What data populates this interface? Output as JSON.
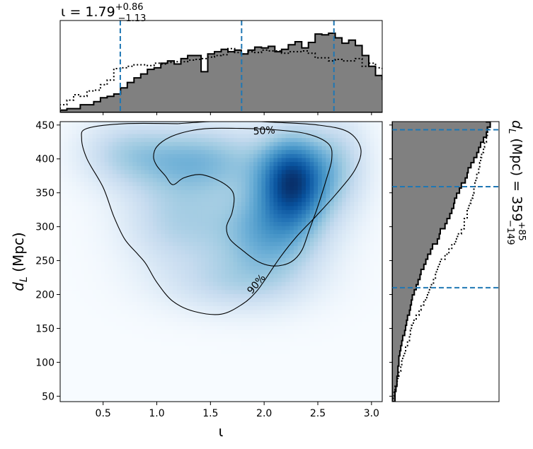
{
  "chart_data": [
    {
      "type": "heatmap",
      "panel": "main",
      "xlabel": "ι",
      "ylabel_main": "d",
      "ylabel_sub": "L",
      "ylabel_unit": " (Mpc)",
      "xlim": [
        0.1,
        3.1
      ],
      "ylim": [
        42,
        455
      ],
      "xticks": [
        0.5,
        1.0,
        1.5,
        2.0,
        2.5,
        3.0
      ],
      "xtick_labels": [
        "0.5",
        "1.0",
        "1.5",
        "2.0",
        "2.5",
        "3.0"
      ],
      "yticks": [
        50,
        100,
        150,
        200,
        250,
        300,
        350,
        400,
        450
      ],
      "ytick_labels": [
        "50",
        "100",
        "150",
        "200",
        "250",
        "300",
        "350",
        "400",
        "450"
      ],
      "colormap": "Blues",
      "density_peaks": [
        {
          "x": 2.27,
          "y": 370,
          "weight": 1.0,
          "sx": 0.22,
          "sy": 45
        },
        {
          "x": 2.05,
          "y": 290,
          "weight": 0.55,
          "sx": 0.35,
          "sy": 50
        },
        {
          "x": 1.4,
          "y": 400,
          "weight": 0.45,
          "sx": 0.45,
          "sy": 35
        },
        {
          "x": 1.2,
          "y": 310,
          "weight": 0.32,
          "sx": 0.35,
          "sy": 50
        },
        {
          "x": 0.7,
          "y": 410,
          "weight": 0.25,
          "sx": 0.3,
          "sy": 35
        },
        {
          "x": 1.7,
          "y": 215,
          "weight": 0.22,
          "sx": 0.45,
          "sy": 30
        },
        {
          "x": 2.7,
          "y": 390,
          "weight": 0.3,
          "sx": 0.2,
          "sy": 50
        }
      ],
      "contours": [
        {
          "label": "50%",
          "label_at": [
            2.0,
            441
          ],
          "label_rotation": -3,
          "points": [
            [
              1.8,
              445
            ],
            [
              2.1,
              443
            ],
            [
              2.4,
              437
            ],
            [
              2.6,
              422
            ],
            [
              2.63,
              400
            ],
            [
              2.58,
              370
            ],
            [
              2.5,
              330
            ],
            [
              2.42,
              295
            ],
            [
              2.35,
              265
            ],
            [
              2.25,
              248
            ],
            [
              2.1,
              242
            ],
            [
              1.95,
              248
            ],
            [
              1.8,
              265
            ],
            [
              1.68,
              282
            ],
            [
              1.65,
              300
            ],
            [
              1.7,
              320
            ],
            [
              1.72,
              343
            ],
            [
              1.68,
              357
            ],
            [
              1.55,
              370
            ],
            [
              1.4,
              377
            ],
            [
              1.25,
              372
            ],
            [
              1.15,
              362
            ],
            [
              1.08,
              375
            ],
            [
              1.0,
              390
            ],
            [
              0.97,
              403
            ],
            [
              1.0,
              418
            ],
            [
              1.12,
              432
            ],
            [
              1.3,
              441
            ],
            [
              1.5,
              445
            ],
            [
              1.8,
              445
            ]
          ]
        },
        {
          "label": "90%",
          "label_at": [
            1.93,
            215
          ],
          "label_rotation": -50,
          "points": [
            [
              1.2,
              452
            ],
            [
              1.5,
              455
            ],
            [
              1.8,
              456
            ],
            [
              2.1,
              454
            ],
            [
              2.5,
              450
            ],
            [
              2.78,
              440
            ],
            [
              2.9,
              415
            ],
            [
              2.85,
              385
            ],
            [
              2.68,
              350
            ],
            [
              2.48,
              315
            ],
            [
              2.3,
              285
            ],
            [
              2.15,
              255
            ],
            [
              2.0,
              220
            ],
            [
              1.92,
              203
            ],
            [
              1.8,
              186
            ],
            [
              1.6,
              171
            ],
            [
              1.35,
              175
            ],
            [
              1.15,
              190
            ],
            [
              1.0,
              218
            ],
            [
              0.9,
              245
            ],
            [
              0.82,
              260
            ],
            [
              0.7,
              282
            ],
            [
              0.6,
              315
            ],
            [
              0.5,
              358
            ],
            [
              0.35,
              400
            ],
            [
              0.3,
              430
            ],
            [
              0.35,
              445
            ],
            [
              0.7,
              452
            ],
            [
              1.2,
              452
            ]
          ]
        }
      ]
    },
    {
      "type": "histogram",
      "panel": "top",
      "title_prefix": "ι = 1.79",
      "title_sup": "+0.86",
      "title_sub": "−1.13",
      "xlim": [
        0.1,
        3.1
      ],
      "bin_start": 0.1,
      "bin_width": 0.0625,
      "max_height": 1.0,
      "series": [
        {
          "name": "solid",
          "style": "filled-step",
          "values": [
            0.03,
            0.05,
            0.05,
            0.1,
            0.1,
            0.14,
            0.19,
            0.21,
            0.24,
            0.32,
            0.39,
            0.45,
            0.5,
            0.56,
            0.58,
            0.64,
            0.67,
            0.63,
            0.7,
            0.74,
            0.74,
            0.53,
            0.76,
            0.79,
            0.82,
            0.79,
            0.81,
            0.76,
            0.81,
            0.85,
            0.84,
            0.86,
            0.79,
            0.82,
            0.88,
            0.92,
            0.84,
            0.91,
            1.02,
            1.01,
            1.03,
            0.97,
            0.9,
            0.94,
            0.87,
            0.74,
            0.6,
            0.48,
            0.43,
            0.35,
            0.27,
            0.23,
            0.16,
            0.13,
            0.16,
            0.11,
            0.08,
            0.06,
            0.03,
            0.03,
            0.02,
            0.03,
            0.06,
            0.06,
            0.08,
            0.13,
            0.17,
            0.28,
            0.33,
            0.42,
            0.44,
            0.52
          ]
        },
        {
          "name": "dotted",
          "style": "dotted-step",
          "values": [
            0.1,
            0.16,
            0.23,
            0.21,
            0.28,
            0.29,
            0.36,
            0.42,
            0.57,
            0.58,
            0.6,
            0.62,
            0.62,
            0.61,
            0.64,
            0.63,
            0.65,
            0.66,
            0.66,
            0.68,
            0.69,
            0.7,
            0.72,
            0.74,
            0.75,
            0.83,
            0.78,
            0.76,
            0.79,
            0.78,
            0.81,
            0.8,
            0.8,
            0.77,
            0.79,
            0.79,
            0.8,
            0.77,
            0.71,
            0.71,
            0.67,
            0.69,
            0.67,
            0.67,
            0.7,
            0.6,
            0.64,
            0.58,
            0.55,
            0.5,
            0.45,
            0.34,
            0.28,
            0.24,
            0.18,
            0.15,
            0.12,
            0.09,
            0.08,
            0.06,
            0.05,
            0.04,
            0.06,
            0.09,
            0.12,
            0.17,
            0.22,
            0.28,
            0.33,
            0.4,
            0.45,
            0.5
          ]
        }
      ],
      "quantile_lines": [
        0.66,
        1.79,
        2.65
      ]
    },
    {
      "type": "histogram",
      "panel": "right",
      "orientation": "horizontal",
      "label_main": "d",
      "label_sub": "L",
      "label_rest_prefix": " (Mpc) = 359",
      "label_sup": "+85",
      "label_sub2": "−149",
      "ylim": [
        42,
        455
      ],
      "bin_start": 42,
      "bin_width": 7.5,
      "series": [
        {
          "name": "solid",
          "style": "filled-step",
          "values": [
            0.03,
            0.03,
            0.04,
            0.05,
            0.05,
            0.06,
            0.06,
            0.07,
            0.07,
            0.08,
            0.09,
            0.1,
            0.11,
            0.13,
            0.14,
            0.15,
            0.16,
            0.18,
            0.19,
            0.2,
            0.21,
            0.23,
            0.25,
            0.27,
            0.29,
            0.3,
            0.33,
            0.35,
            0.37,
            0.4,
            0.42,
            0.47,
            0.49,
            0.5,
            0.55,
            0.57,
            0.6,
            0.62,
            0.64,
            0.65,
            0.67,
            0.7,
            0.72,
            0.76,
            0.78,
            0.79,
            0.82,
            0.85,
            0.88,
            0.9,
            0.92,
            0.95,
            0.98,
            0.99,
            1.02,
            0.98,
            1.03,
            0.99
          ]
        },
        {
          "name": "dotted",
          "style": "dotted-step",
          "values": [
            0.01,
            0.02,
            0.03,
            0.05,
            0.06,
            0.07,
            0.09,
            0.1,
            0.11,
            0.13,
            0.14,
            0.16,
            0.18,
            0.19,
            0.2,
            0.22,
            0.25,
            0.28,
            0.3,
            0.33,
            0.36,
            0.38,
            0.4,
            0.43,
            0.45,
            0.46,
            0.48,
            0.5,
            0.55,
            0.59,
            0.62,
            0.66,
            0.68,
            0.72,
            0.75,
            0.75,
            0.78,
            0.78,
            0.8,
            0.82,
            0.84,
            0.85,
            0.86,
            0.87,
            0.88,
            0.9,
            0.91,
            0.92,
            0.93,
            0.95,
            0.96,
            0.98,
            0.99,
            1.0,
            1.02,
            1.0,
            1.04,
            1.0
          ]
        }
      ],
      "quantile_lines": [
        210,
        359,
        443
      ]
    }
  ]
}
